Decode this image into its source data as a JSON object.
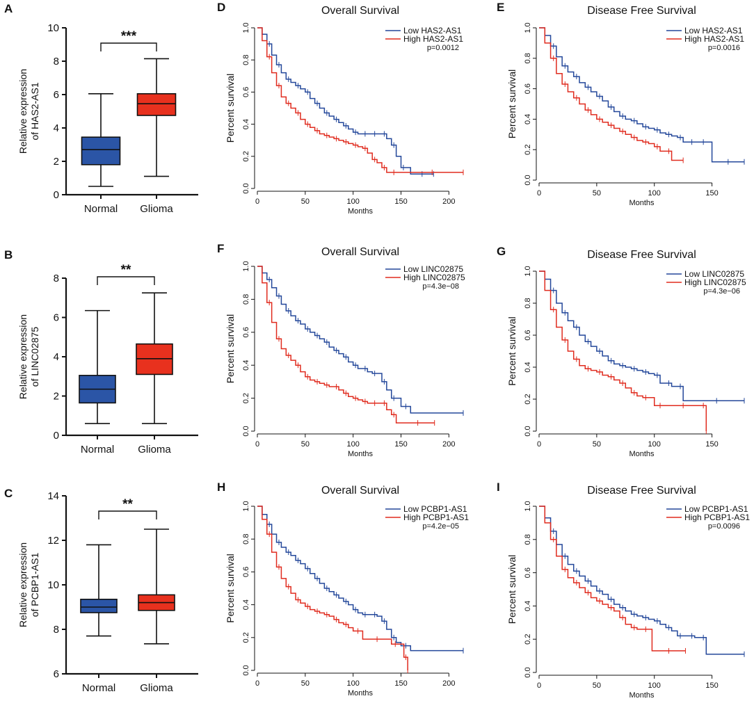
{
  "chart_data": [
    {
      "panel": "A",
      "type": "box",
      "ylabel": [
        "Relative expression",
        "of HAS2-AS1"
      ],
      "ylim": [
        0,
        10
      ],
      "yticks": [
        0,
        2,
        4,
        6,
        8,
        10
      ],
      "categories": [
        "Normal",
        "Glioma"
      ],
      "boxes": [
        {
          "name": "Normal",
          "color": "#2b55a6",
          "min": 0.5,
          "q1": 1.8,
          "median": 2.7,
          "q3": 3.45,
          "max": 6.05
        },
        {
          "name": "Glioma",
          "color": "#e8311e",
          "min": 1.1,
          "q1": 4.75,
          "median": 5.45,
          "q3": 6.05,
          "max": 8.15
        }
      ],
      "significance": "***"
    },
    {
      "panel": "B",
      "type": "box",
      "ylabel": [
        "Relative expression",
        "of LINC02875"
      ],
      "ylim": [
        0,
        8
      ],
      "yticks": [
        0,
        2,
        4,
        6,
        8
      ],
      "categories": [
        "Normal",
        "Glioma"
      ],
      "boxes": [
        {
          "name": "Normal",
          "color": "#2b55a6",
          "min": 0.6,
          "q1": 1.65,
          "median": 2.35,
          "q3": 3.05,
          "max": 6.35
        },
        {
          "name": "Glioma",
          "color": "#e8311e",
          "min": 0.6,
          "q1": 3.1,
          "median": 3.9,
          "q3": 4.65,
          "max": 7.25
        }
      ],
      "significance": "**"
    },
    {
      "panel": "C",
      "type": "box",
      "ylabel": [
        "Relative expression",
        "of PCBP1-AS1"
      ],
      "ylim": [
        6,
        14
      ],
      "yticks": [
        6,
        8,
        10,
        12,
        14
      ],
      "categories": [
        "Normal",
        "Glioma"
      ],
      "boxes": [
        {
          "name": "Normal",
          "color": "#2b55a6",
          "min": 7.7,
          "q1": 8.75,
          "median": 9.0,
          "q3": 9.35,
          "max": 11.8
        },
        {
          "name": "Glioma",
          "color": "#e8311e",
          "min": 7.35,
          "q1": 8.85,
          "median": 9.2,
          "q3": 9.55,
          "max": 12.5
        }
      ],
      "significance": "**"
    },
    {
      "panel": "D",
      "type": "line",
      "title": "Overall Survival",
      "xlabel": "Months",
      "ylabel": "Percent survival",
      "xlim": [
        0,
        215
      ],
      "xticks": [
        0,
        50,
        100,
        150,
        200
      ],
      "ylim": [
        0,
        1
      ],
      "yticks": [
        "0.0",
        "0.2",
        "0.4",
        "0.6",
        "0.8",
        "1.0"
      ],
      "legend": [
        "Low HAS2-AS1",
        "High HAS2-AS1"
      ],
      "pvalue": "p=0.0012",
      "series": [
        {
          "name": "Low HAS2-AS1",
          "color": "#23479a",
          "end": 184,
          "x": [
            0,
            5,
            10,
            15,
            20,
            25,
            30,
            35,
            40,
            45,
            50,
            55,
            60,
            65,
            70,
            75,
            80,
            85,
            90,
            95,
            100,
            105,
            110,
            115,
            120,
            125,
            130,
            135,
            140,
            145,
            150,
            155,
            160,
            184
          ],
          "y": [
            1.0,
            0.96,
            0.9,
            0.83,
            0.77,
            0.72,
            0.68,
            0.66,
            0.64,
            0.62,
            0.6,
            0.56,
            0.53,
            0.5,
            0.47,
            0.45,
            0.43,
            0.41,
            0.39,
            0.37,
            0.35,
            0.34,
            0.34,
            0.34,
            0.34,
            0.34,
            0.34,
            0.31,
            0.27,
            0.2,
            0.13,
            0.13,
            0.09,
            0.09
          ]
        },
        {
          "name": "High HAS2-AS1",
          "color": "#e02b1e",
          "end": 215,
          "x": [
            0,
            5,
            10,
            15,
            20,
            25,
            30,
            35,
            40,
            45,
            50,
            55,
            60,
            65,
            70,
            75,
            80,
            85,
            90,
            95,
            100,
            105,
            110,
            115,
            120,
            125,
            130,
            135,
            140,
            145,
            150,
            215
          ],
          "y": [
            1.0,
            0.92,
            0.82,
            0.72,
            0.64,
            0.57,
            0.53,
            0.5,
            0.47,
            0.43,
            0.4,
            0.38,
            0.36,
            0.34,
            0.33,
            0.32,
            0.31,
            0.3,
            0.29,
            0.28,
            0.27,
            0.26,
            0.25,
            0.22,
            0.18,
            0.16,
            0.13,
            0.1,
            0.1,
            0.1,
            0.1,
            0.1
          ]
        }
      ]
    },
    {
      "panel": "E",
      "type": "line",
      "title": "Disease Free Survival",
      "xlabel": "Months",
      "ylabel": "Percent survival",
      "xlim": [
        0,
        178
      ],
      "xticks": [
        0,
        50,
        100,
        150
      ],
      "ylim": [
        0,
        1
      ],
      "yticks": [
        "0.0",
        "0.2",
        "0.4",
        "0.6",
        "0.8",
        "1.0"
      ],
      "legend": [
        "Low HAS2-AS1",
        "High HAS2-AS1"
      ],
      "pvalue": "p=0.0016",
      "series": [
        {
          "name": "Low HAS2-AS1",
          "color": "#23479a",
          "end": 178,
          "x": [
            0,
            5,
            10,
            15,
            20,
            25,
            30,
            35,
            40,
            45,
            50,
            55,
            60,
            65,
            70,
            75,
            80,
            85,
            90,
            95,
            100,
            105,
            110,
            115,
            120,
            125,
            130,
            135,
            140,
            145,
            150,
            178
          ],
          "y": [
            1.0,
            0.95,
            0.88,
            0.81,
            0.75,
            0.71,
            0.68,
            0.64,
            0.61,
            0.58,
            0.55,
            0.52,
            0.48,
            0.45,
            0.42,
            0.4,
            0.39,
            0.37,
            0.35,
            0.34,
            0.33,
            0.31,
            0.3,
            0.29,
            0.28,
            0.25,
            0.25,
            0.25,
            0.25,
            0.25,
            0.12,
            0.12
          ]
        },
        {
          "name": "High HAS2-AS1",
          "color": "#e02b1e",
          "end": 125,
          "x": [
            0,
            5,
            10,
            15,
            20,
            25,
            30,
            35,
            40,
            45,
            50,
            55,
            60,
            65,
            70,
            75,
            80,
            85,
            90,
            95,
            100,
            105,
            110,
            115,
            125
          ],
          "y": [
            1.0,
            0.9,
            0.8,
            0.7,
            0.63,
            0.58,
            0.54,
            0.5,
            0.46,
            0.43,
            0.4,
            0.38,
            0.36,
            0.34,
            0.32,
            0.3,
            0.28,
            0.26,
            0.25,
            0.24,
            0.22,
            0.19,
            0.19,
            0.13,
            0.13
          ]
        }
      ]
    },
    {
      "panel": "F",
      "type": "line",
      "title": "Overall Survival",
      "xlabel": "Months",
      "ylabel": "Percent survival",
      "xlim": [
        0,
        215
      ],
      "xticks": [
        0,
        50,
        100,
        150,
        200
      ],
      "ylim": [
        0,
        1
      ],
      "yticks": [
        "0.0",
        "0.2",
        "0.4",
        "0.6",
        "0.8",
        "1.0"
      ],
      "legend": [
        "Low LINC02875",
        "High LINC02875"
      ],
      "pvalue": "p=4.3e−08",
      "series": [
        {
          "name": "Low LINC02875",
          "color": "#23479a",
          "end": 215,
          "x": [
            0,
            5,
            10,
            15,
            20,
            25,
            30,
            35,
            40,
            45,
            50,
            55,
            60,
            65,
            70,
            75,
            80,
            85,
            90,
            95,
            100,
            105,
            110,
            115,
            120,
            125,
            130,
            135,
            140,
            145,
            150,
            160,
            215
          ],
          "y": [
            1.0,
            0.96,
            0.92,
            0.87,
            0.82,
            0.77,
            0.73,
            0.7,
            0.67,
            0.65,
            0.62,
            0.6,
            0.58,
            0.56,
            0.54,
            0.51,
            0.49,
            0.47,
            0.45,
            0.42,
            0.4,
            0.38,
            0.38,
            0.36,
            0.35,
            0.35,
            0.3,
            0.25,
            0.2,
            0.2,
            0.15,
            0.11,
            0.11
          ]
        },
        {
          "name": "High LINC02875",
          "color": "#e02b1e",
          "end": 185,
          "x": [
            0,
            5,
            10,
            15,
            20,
            25,
            30,
            35,
            40,
            45,
            50,
            55,
            60,
            65,
            70,
            75,
            80,
            85,
            90,
            95,
            100,
            105,
            110,
            115,
            120,
            125,
            130,
            135,
            140,
            145,
            150,
            185
          ],
          "y": [
            1.0,
            0.9,
            0.78,
            0.66,
            0.56,
            0.5,
            0.46,
            0.43,
            0.4,
            0.36,
            0.33,
            0.31,
            0.3,
            0.29,
            0.28,
            0.27,
            0.27,
            0.25,
            0.23,
            0.21,
            0.2,
            0.19,
            0.18,
            0.17,
            0.17,
            0.17,
            0.17,
            0.13,
            0.1,
            0.05,
            0.05,
            0.05
          ]
        }
      ]
    },
    {
      "panel": "G",
      "type": "line",
      "title": "Disease Free Survival",
      "xlabel": "Months",
      "ylabel": "Percent survival",
      "xlim": [
        0,
        178
      ],
      "xticks": [
        0,
        50,
        100,
        150
      ],
      "ylim": [
        0,
        1
      ],
      "yticks": [
        "0.0",
        "0.2",
        "0.4",
        "0.6",
        "0.8",
        "1.0"
      ],
      "legend": [
        "Low LINC02875",
        "High LINC02875"
      ],
      "pvalue": "p=4.3e−06",
      "series": [
        {
          "name": "Low LINC02875",
          "color": "#23479a",
          "end": 178,
          "x": [
            0,
            5,
            10,
            15,
            20,
            25,
            30,
            35,
            40,
            45,
            50,
            55,
            60,
            65,
            70,
            75,
            80,
            85,
            90,
            95,
            100,
            105,
            110,
            115,
            120,
            125,
            130,
            178
          ],
          "y": [
            1.0,
            0.95,
            0.88,
            0.8,
            0.74,
            0.69,
            0.65,
            0.6,
            0.56,
            0.53,
            0.5,
            0.47,
            0.44,
            0.42,
            0.41,
            0.4,
            0.39,
            0.38,
            0.37,
            0.36,
            0.35,
            0.3,
            0.3,
            0.28,
            0.28,
            0.19,
            0.19,
            0.19
          ]
        },
        {
          "name": "High LINC02875",
          "color": "#e02b1e",
          "end": 145,
          "x": [
            0,
            5,
            10,
            15,
            20,
            25,
            30,
            35,
            40,
            45,
            50,
            55,
            60,
            65,
            70,
            75,
            80,
            85,
            90,
            95,
            100,
            110,
            120,
            130,
            140,
            145
          ],
          "y": [
            1.0,
            0.88,
            0.76,
            0.65,
            0.57,
            0.5,
            0.45,
            0.41,
            0.39,
            0.38,
            0.37,
            0.35,
            0.34,
            0.32,
            0.3,
            0.27,
            0.24,
            0.22,
            0.21,
            0.21,
            0.16,
            0.16,
            0.16,
            0.16,
            0.16,
            0.0
          ]
        }
      ]
    },
    {
      "panel": "H",
      "type": "line",
      "title": "Overall Survival",
      "xlabel": "Months",
      "ylabel": "Percent survival",
      "xlim": [
        0,
        215
      ],
      "xticks": [
        0,
        50,
        100,
        150,
        200
      ],
      "ylim": [
        0,
        1
      ],
      "yticks": [
        "0.0",
        "0.2",
        "0.4",
        "0.6",
        "0.8",
        "1.0"
      ],
      "legend": [
        "Low PCBP1-AS1",
        "High PCBP1-AS1"
      ],
      "pvalue": "p=4.2e−05",
      "series": [
        {
          "name": "Low PCBP1-AS1",
          "color": "#23479a",
          "end": 215,
          "x": [
            0,
            5,
            10,
            15,
            20,
            25,
            30,
            35,
            40,
            45,
            50,
            55,
            60,
            65,
            70,
            75,
            80,
            85,
            90,
            95,
            100,
            105,
            110,
            115,
            120,
            125,
            130,
            135,
            140,
            145,
            150,
            160,
            215
          ],
          "y": [
            1.0,
            0.95,
            0.89,
            0.83,
            0.78,
            0.75,
            0.72,
            0.7,
            0.67,
            0.65,
            0.62,
            0.59,
            0.56,
            0.53,
            0.5,
            0.48,
            0.46,
            0.44,
            0.42,
            0.4,
            0.37,
            0.35,
            0.34,
            0.34,
            0.34,
            0.33,
            0.3,
            0.25,
            0.2,
            0.17,
            0.15,
            0.12,
            0.12
          ]
        },
        {
          "name": "High PCBP1-AS1",
          "color": "#e02b1e",
          "end": 157,
          "x": [
            0,
            5,
            10,
            15,
            20,
            25,
            30,
            35,
            40,
            45,
            50,
            55,
            60,
            65,
            70,
            75,
            80,
            85,
            90,
            95,
            100,
            110,
            120,
            130,
            140,
            148,
            153,
            157
          ],
          "y": [
            1.0,
            0.92,
            0.83,
            0.72,
            0.63,
            0.56,
            0.51,
            0.47,
            0.43,
            0.41,
            0.39,
            0.37,
            0.36,
            0.35,
            0.34,
            0.33,
            0.31,
            0.29,
            0.28,
            0.26,
            0.24,
            0.19,
            0.19,
            0.19,
            0.16,
            0.16,
            0.08,
            0.0
          ]
        }
      ]
    },
    {
      "panel": "I",
      "type": "line",
      "title": "Disease Free Survival",
      "xlabel": "Months",
      "ylabel": "Percent survival",
      "xlim": [
        0,
        178
      ],
      "xticks": [
        0,
        50,
        100,
        150
      ],
      "ylim": [
        0,
        1
      ],
      "yticks": [
        "0.0",
        "0.2",
        "0.4",
        "0.6",
        "0.8",
        "1.0"
      ],
      "legend": [
        "Low  PCBP1-AS1",
        "High PCBP1-AS1"
      ],
      "pvalue": "p=0.0096",
      "series": [
        {
          "name": "Low  PCBP1-AS1",
          "color": "#23479a",
          "end": 178,
          "x": [
            0,
            5,
            10,
            15,
            20,
            25,
            30,
            35,
            40,
            45,
            50,
            55,
            60,
            65,
            70,
            75,
            80,
            85,
            90,
            95,
            100,
            105,
            110,
            115,
            120,
            125,
            130,
            135,
            140,
            145,
            178
          ],
          "y": [
            1.0,
            0.93,
            0.85,
            0.77,
            0.7,
            0.65,
            0.61,
            0.58,
            0.55,
            0.52,
            0.49,
            0.47,
            0.44,
            0.41,
            0.39,
            0.37,
            0.35,
            0.34,
            0.33,
            0.32,
            0.31,
            0.29,
            0.27,
            0.25,
            0.22,
            0.22,
            0.22,
            0.21,
            0.21,
            0.11,
            0.11
          ]
        },
        {
          "name": "High PCBP1-AS1",
          "color": "#e02b1e",
          "end": 127,
          "x": [
            0,
            5,
            10,
            15,
            20,
            25,
            30,
            35,
            40,
            45,
            50,
            55,
            60,
            65,
            70,
            75,
            80,
            85,
            90,
            95,
            98,
            127
          ],
          "y": [
            1.0,
            0.9,
            0.8,
            0.7,
            0.62,
            0.57,
            0.54,
            0.51,
            0.48,
            0.45,
            0.43,
            0.41,
            0.39,
            0.37,
            0.33,
            0.29,
            0.27,
            0.26,
            0.26,
            0.26,
            0.13,
            0.13
          ]
        }
      ]
    }
  ]
}
